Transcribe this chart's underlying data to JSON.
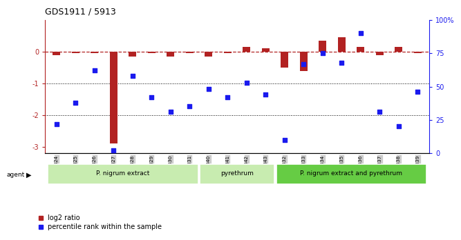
{
  "title": "GDS1911 / 5913",
  "samples": [
    "GSM66824",
    "GSM66825",
    "GSM66826",
    "GSM66827",
    "GSM66828",
    "GSM66829",
    "GSM66830",
    "GSM66831",
    "GSM66840",
    "GSM66841",
    "GSM66842",
    "GSM66843",
    "GSM66832",
    "GSM66833",
    "GSM66834",
    "GSM66835",
    "GSM66836",
    "GSM66837",
    "GSM66838",
    "GSM66839"
  ],
  "log2_ratio": [
    -0.1,
    -0.05,
    -0.05,
    -2.9,
    -0.15,
    -0.05,
    -0.15,
    -0.05,
    -0.15,
    -0.05,
    0.15,
    0.1,
    -0.5,
    -0.6,
    0.35,
    0.45,
    0.15,
    -0.1,
    0.15,
    -0.05
  ],
  "pct_rank": [
    22,
    38,
    62,
    2,
    58,
    42,
    31,
    35,
    48,
    42,
    53,
    44,
    10,
    67,
    75,
    68,
    90,
    31,
    20,
    46
  ],
  "bar_color_red": "#b22222",
  "bar_color_blue": "#1a1aee",
  "ylim_left": [
    -3.2,
    1.0
  ],
  "ylim_right": [
    0,
    100
  ],
  "yticks_left": [
    0,
    -1,
    -2,
    -3
  ],
  "yticks_right": [
    0,
    25,
    50,
    75,
    100
  ],
  "dotted_lines": [
    -1,
    -2
  ],
  "group_defs": [
    {
      "start": 0,
      "end": 7,
      "color": "#c8ecb0",
      "label": "P. nigrum extract"
    },
    {
      "start": 8,
      "end": 11,
      "color": "#c8ecb0",
      "label": "pyrethrum"
    },
    {
      "start": 12,
      "end": 19,
      "color": "#66cc44",
      "label": "P. nigrum extract and pyrethrum"
    }
  ],
  "legend_items": [
    {
      "label": "log2 ratio",
      "color": "#b22222"
    },
    {
      "label": "percentile rank within the sample",
      "color": "#1a1aee"
    }
  ]
}
